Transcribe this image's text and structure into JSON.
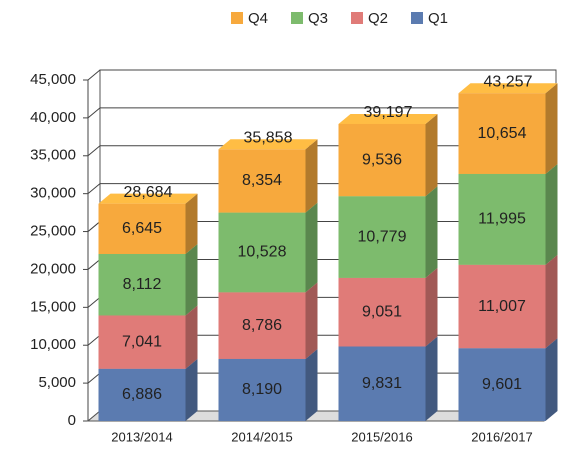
{
  "chart_data": {
    "type": "bar3d_stacked",
    "categories": [
      "2013/2014",
      "2014/2015",
      "2015/2016",
      "2016/2017"
    ],
    "series": [
      {
        "name": "Q1",
        "color": "#5b7bb0",
        "values": [
          6886,
          8190,
          9831,
          9601
        ],
        "value_labels": [
          "6,886",
          "8,190",
          "9,831",
          "9,601"
        ]
      },
      {
        "name": "Q2",
        "color": "#e07b78",
        "values": [
          7041,
          8786,
          9051,
          11007
        ],
        "value_labels": [
          "7,041",
          "8,786",
          "9,051",
          "11,007"
        ]
      },
      {
        "name": "Q3",
        "color": "#7dbb6d",
        "values": [
          8112,
          10528,
          10779,
          11995
        ],
        "value_labels": [
          "8,112",
          "10,528",
          "10,779",
          "11,995"
        ]
      },
      {
        "name": "Q4",
        "color": "#f7a93d",
        "values": [
          6645,
          8354,
          9536,
          10654
        ],
        "value_labels": [
          "6,645",
          "8,354",
          "9,536",
          "10,654"
        ]
      }
    ],
    "totals": {
      "values": [
        28684,
        35858,
        39197,
        43257
      ],
      "value_labels": [
        "28,684",
        "35,858",
        "39,197",
        "43,257"
      ]
    },
    "ylim": [
      0,
      45000
    ],
    "yticks": [
      0,
      {
        "value": 5000,
        "label": "5,000"
      },
      {
        "value": 10000,
        "label": "10,000"
      },
      {
        "value": 15000,
        "label": "15,000"
      },
      {
        "value": 20000,
        "label": "20,000"
      },
      {
        "value": 25000,
        "label": "25,000"
      },
      {
        "value": 30000,
        "label": "30,000"
      },
      {
        "value": 35000,
        "label": "35,000"
      },
      {
        "value": 40000,
        "label": "40,000"
      },
      {
        "value": 45000,
        "label": "45,000"
      }
    ],
    "grid": true,
    "legend": "top"
  }
}
